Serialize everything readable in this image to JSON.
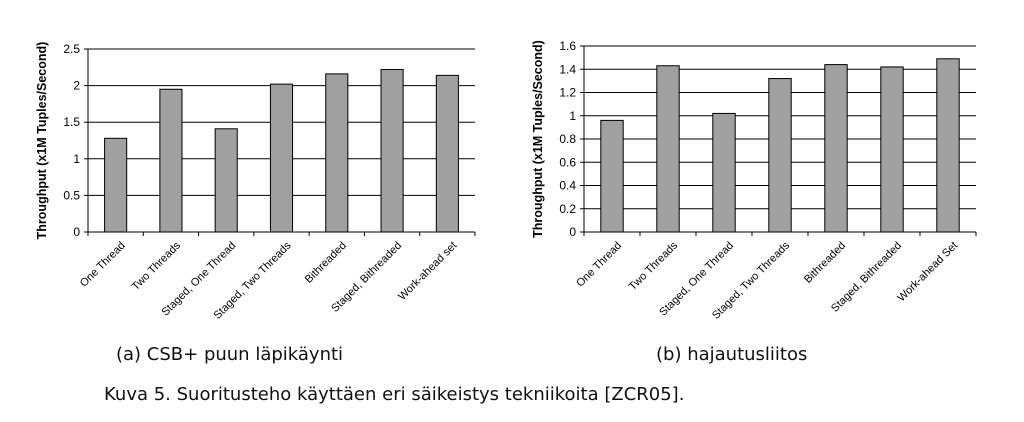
{
  "figure_caption": "Kuva 5. Suoritusteho käyttäen eri säikeistys tekniikoita [ZCR05].",
  "chart_data": [
    {
      "type": "bar",
      "caption": "(a) CSB+ puun läpikäynti",
      "ylabel": "Throughput (x1M Tuples/Second)",
      "xlabel": "",
      "ylim": [
        0,
        2.5
      ],
      "yticks": [
        0,
        0.5,
        1,
        1.5,
        2,
        2.5
      ],
      "ytick_labels": [
        "0",
        "0.5",
        "1",
        "1.5",
        "2",
        "2.5"
      ],
      "categories": [
        "One Thread",
        "Two Threads",
        "Staged, One Thread",
        "Staged, Two Threads",
        "Bithreaded",
        "Staged, Bithreaded",
        "Work-ahead set"
      ],
      "values": [
        1.28,
        1.95,
        1.41,
        2.02,
        2.16,
        2.22,
        2.14
      ],
      "grid": true,
      "bar_color": "#a0a0a0"
    },
    {
      "type": "bar",
      "caption": "(b) hajautusliitos",
      "ylabel": "Throughput (x1M Tuples/Second)",
      "xlabel": "",
      "ylim": [
        0,
        1.6
      ],
      "yticks": [
        0,
        0.2,
        0.4,
        0.6,
        0.8,
        1,
        1.2,
        1.4,
        1.6
      ],
      "ytick_labels": [
        "0",
        "0.2",
        "0.4",
        "0.6",
        "0.8",
        "1",
        "1.2",
        "1.4",
        "1.6"
      ],
      "categories": [
        "One Thread",
        "Two Threads",
        "Staged, One Thread",
        "Staged, Two Threads",
        "Bithreaded",
        "Staged, Bithreaded",
        "Work-ahead Set"
      ],
      "values": [
        0.96,
        1.43,
        1.02,
        1.32,
        1.44,
        1.42,
        1.49
      ],
      "grid": true,
      "bar_color": "#a0a0a0"
    }
  ]
}
